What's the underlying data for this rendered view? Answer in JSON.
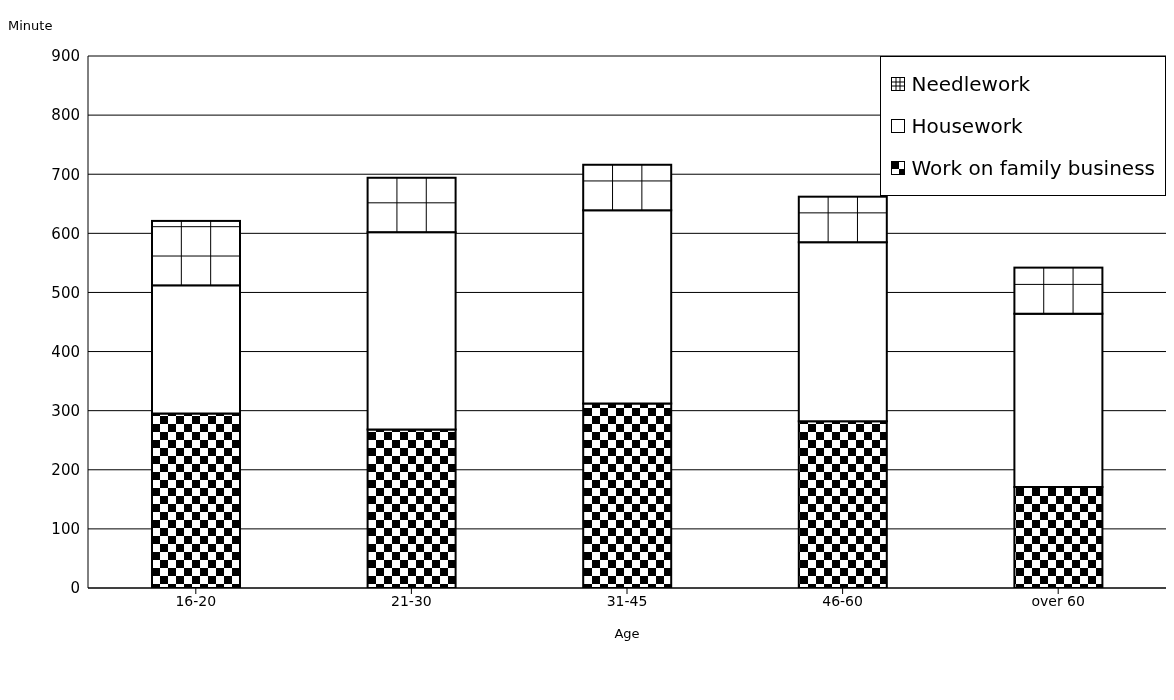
{
  "chart_data": {
    "type": "bar",
    "stacked": true,
    "xlabel": "Age",
    "ylabel": "Minute",
    "categories": [
      "16-20",
      "21-30",
      "31-45",
      "46-60",
      "over 60"
    ],
    "series": [
      {
        "name": "Work on family business",
        "color": "#000000",
        "values": [
          295,
          268,
          312,
          282,
          171
        ]
      },
      {
        "name": "Housework",
        "color": "#ffffff",
        "values": [
          217,
          334,
          327,
          303,
          293
        ]
      },
      {
        "name": "Needlework",
        "color": "#ffffff",
        "values": [
          109,
          92,
          77,
          77,
          78
        ]
      }
    ],
    "ylim": [
      0,
      900
    ],
    "yticks": [
      0,
      100,
      200,
      300,
      400,
      500,
      600,
      700,
      800,
      900
    ],
    "grid": "y",
    "legend": "top right"
  }
}
